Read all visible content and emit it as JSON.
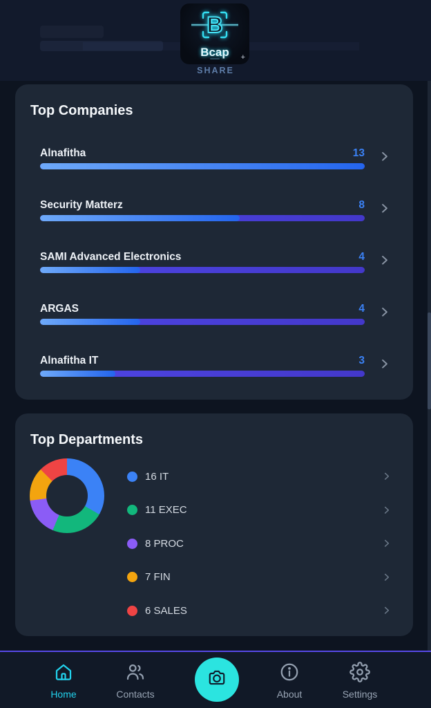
{
  "header": {
    "logo_title": "Bcap",
    "share_label": "SHARE"
  },
  "colors": {
    "card_background": "#1e2836",
    "accent_blue": "#3b82f6",
    "bar_fill_start": "#6ea9f9",
    "bar_fill_end": "#2465ee",
    "bar_track_start": "#4f46e5",
    "bar_track_end": "#4338ca",
    "nav_active": "#22d3ee",
    "fab_background": "#2be4e0",
    "footer_accent_line": "#5849e8",
    "neon_cyan_logo": "#35dff2"
  },
  "top_companies": {
    "title": "Top Companies"
  },
  "top_departments": {
    "title": "Top Departments"
  },
  "nav": {
    "home": "Home",
    "contacts": "Contacts",
    "about": "About",
    "settings": "Settings"
  },
  "chart_data": [
    {
      "type": "bar",
      "title": "Top Companies",
      "orientation": "horizontal",
      "categories": [
        "Alnafitha",
        "Security Matterz",
        "SAMI Advanced Electronics",
        "ARGAS",
        "Alnafitha IT"
      ],
      "values": [
        13,
        8,
        4,
        4,
        3
      ],
      "value_scale_max": 13,
      "value_color": "#3b82f6",
      "grid": false
    },
    {
      "type": "pie",
      "donut": true,
      "title": "Top Departments",
      "categories": [
        "IT",
        "EXEC",
        "PROC",
        "FIN",
        "SALES"
      ],
      "values": [
        16,
        11,
        8,
        7,
        6
      ],
      "colors": [
        "#3b82f6",
        "#12b77c",
        "#8b5cf6",
        "#f3a40f",
        "#ef4444"
      ],
      "legend": [
        "16 IT",
        "11 EXEC",
        "8 PROC",
        "7 FIN",
        "6 SALES"
      ],
      "legend_position": "right",
      "start_angle_deg": 0,
      "clockwise": true
    }
  ]
}
